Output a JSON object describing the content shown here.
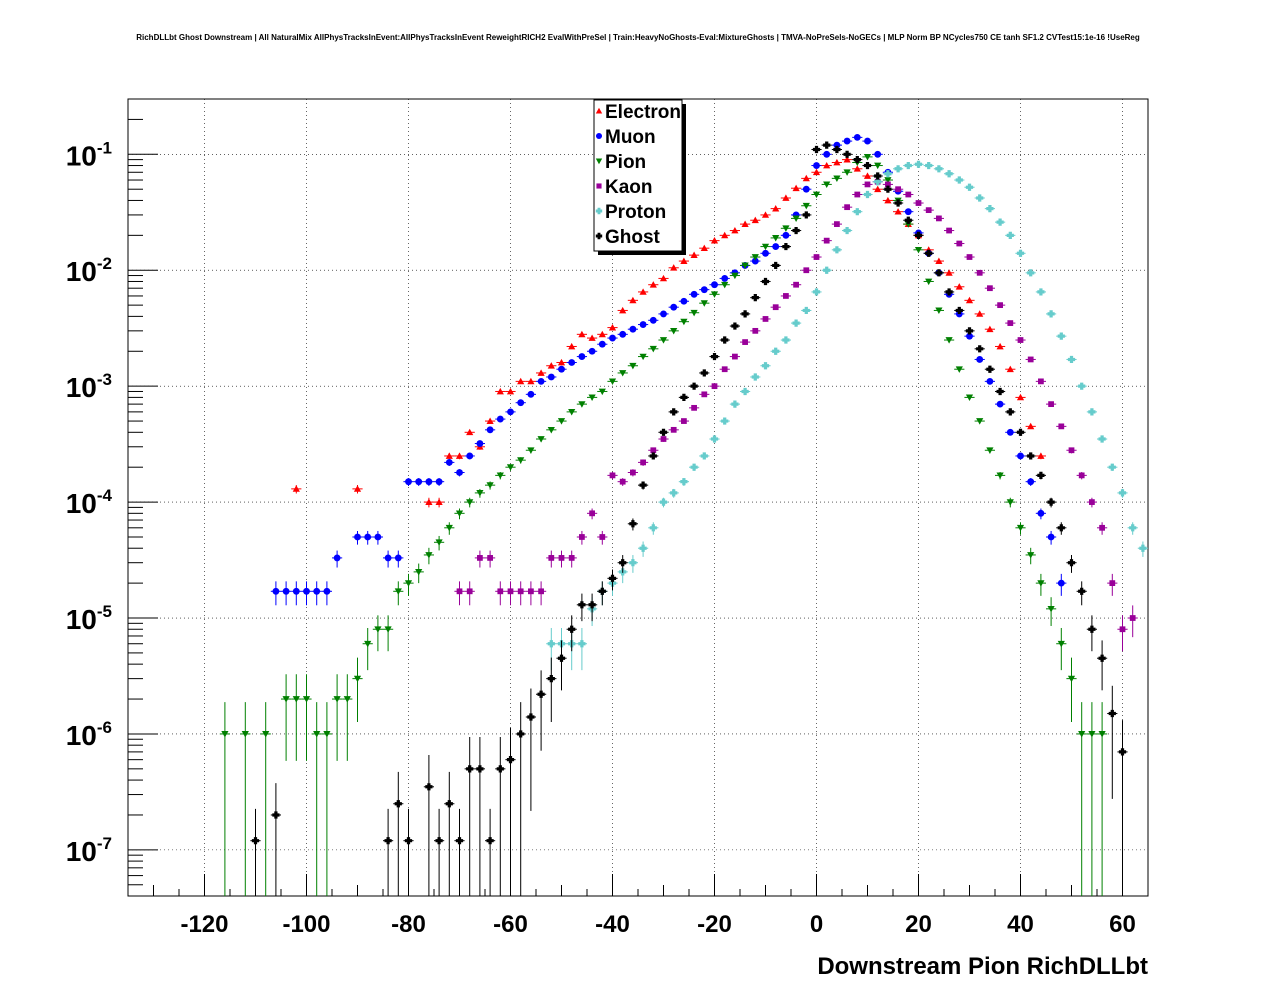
{
  "chart_data": {
    "type": "scatter",
    "title": "RichDLLbt Ghost Downstream | All NaturalMix AllPhysTracksInEvent:AllPhysTracksInEvent ReweightRICH2 EvalWithPreSel | Train:HeavyNoGhosts-Eval:MixtureGhosts | TMVA-NoPreSels-NoGECs | MLP Norm BP NCycles750 CE tanh SF1.2 CVTest15:1e-16 !UseReg",
    "xlabel": "Downstream Pion RichDLLbt",
    "ylabel": "",
    "xlim": [
      -135,
      65
    ],
    "ylim": [
      4e-08,
      0.3
    ],
    "yscale": "log",
    "grid": true,
    "legend_position": "top-center",
    "x_ticks": [
      -120,
      -100,
      -80,
      -60,
      -40,
      -20,
      0,
      20,
      40,
      60
    ],
    "y_ticks": [
      {
        "value": 1e-07,
        "base": "10",
        "exp": "-7"
      },
      {
        "value": 1e-06,
        "base": "10",
        "exp": "-6"
      },
      {
        "value": 1e-05,
        "base": "10",
        "exp": "-5"
      },
      {
        "value": 0.0001,
        "base": "10",
        "exp": "-4"
      },
      {
        "value": 0.001,
        "base": "10",
        "exp": "-3"
      },
      {
        "value": 0.01,
        "base": "10",
        "exp": "-2"
      },
      {
        "value": 0.1,
        "base": "10",
        "exp": "-1"
      }
    ],
    "series": [
      {
        "name": "Electron",
        "color": "#ff0000",
        "marker": "triangle-up",
        "x": [
          -102,
          -90,
          -76,
          -74,
          -72,
          -70,
          -68,
          -66,
          -64,
          -62,
          -60,
          -58,
          -56,
          -54,
          -52,
          -50,
          -48,
          -46,
          -44,
          -42,
          -40,
          -38,
          -36,
          -34,
          -32,
          -30,
          -28,
          -26,
          -24,
          -22,
          -20,
          -18,
          -16,
          -14,
          -12,
          -10,
          -8,
          -6,
          -4,
          -2,
          0,
          2,
          4,
          6,
          8,
          10,
          12,
          14,
          16,
          18,
          20,
          22,
          24,
          26,
          28,
          30,
          32,
          34,
          36,
          38,
          40,
          42,
          44
        ],
        "y": [
          0.00013,
          0.00013,
          0.0001,
          0.0001,
          0.00025,
          0.00025,
          0.0004,
          0.0003,
          0.0005,
          0.0009,
          0.0009,
          0.0011,
          0.0011,
          0.0013,
          0.0015,
          0.0016,
          0.0022,
          0.0028,
          0.0026,
          0.0028,
          0.0032,
          0.0045,
          0.0055,
          0.0065,
          0.0075,
          0.0085,
          0.0105,
          0.012,
          0.0135,
          0.0155,
          0.018,
          0.02,
          0.022,
          0.025,
          0.027,
          0.03,
          0.034,
          0.042,
          0.051,
          0.062,
          0.07,
          0.08,
          0.085,
          0.09,
          0.075,
          0.065,
          0.05,
          0.04,
          0.032,
          0.025,
          0.02,
          0.015,
          0.012,
          0.0095,
          0.0072,
          0.0055,
          0.0042,
          0.0031,
          0.0022,
          0.0014,
          0.0008,
          0.00045,
          0.00025
        ]
      },
      {
        "name": "Muon",
        "color": "#0000ff",
        "marker": "circle",
        "x": [
          -106,
          -104,
          -102,
          -100,
          -98,
          -96,
          -94,
          -90,
          -88,
          -86,
          -84,
          -82,
          -80,
          -78,
          -76,
          -74,
          -72,
          -70,
          -68,
          -66,
          -64,
          -62,
          -60,
          -58,
          -56,
          -54,
          -52,
          -50,
          -48,
          -46,
          -44,
          -42,
          -40,
          -38,
          -36,
          -34,
          -32,
          -30,
          -28,
          -26,
          -24,
          -22,
          -20,
          -18,
          -16,
          -14,
          -12,
          -10,
          -8,
          -6,
          -4,
          -2,
          0,
          2,
          4,
          6,
          8,
          10,
          12,
          14,
          16,
          18,
          20,
          22,
          24,
          26,
          28,
          30,
          32,
          34,
          36,
          38,
          40,
          42,
          44,
          46,
          48
        ],
        "y": [
          1.7e-05,
          1.7e-05,
          1.7e-05,
          1.7e-05,
          1.7e-05,
          1.7e-05,
          3.3e-05,
          5e-05,
          5e-05,
          5e-05,
          3.3e-05,
          3.3e-05,
          0.00015,
          0.00015,
          0.00015,
          0.00015,
          0.00022,
          0.00018,
          0.00025,
          0.00032,
          0.00042,
          0.00052,
          0.0006,
          0.00072,
          0.00085,
          0.0011,
          0.0012,
          0.0014,
          0.0016,
          0.0018,
          0.002,
          0.0023,
          0.0026,
          0.0028,
          0.0031,
          0.0034,
          0.0037,
          0.0042,
          0.0048,
          0.0054,
          0.0062,
          0.0068,
          0.0075,
          0.0085,
          0.0095,
          0.011,
          0.012,
          0.014,
          0.016,
          0.02,
          0.03,
          0.05,
          0.08,
          0.1,
          0.12,
          0.13,
          0.14,
          0.13,
          0.1,
          0.07,
          0.048,
          0.032,
          0.021,
          0.014,
          0.0095,
          0.0062,
          0.0042,
          0.0027,
          0.0017,
          0.0011,
          0.0007,
          0.0004,
          0.00025,
          0.00015,
          8e-05,
          5e-05,
          2e-05
        ]
      },
      {
        "name": "Pion",
        "color": "#008000",
        "marker": "triangle-down",
        "x": [
          -116,
          -112,
          -108,
          -104,
          -102,
          -100,
          -98,
          -96,
          -94,
          -92,
          -90,
          -88,
          -86,
          -84,
          -82,
          -80,
          -78,
          -76,
          -74,
          -72,
          -70,
          -68,
          -66,
          -64,
          -62,
          -60,
          -58,
          -56,
          -54,
          -52,
          -50,
          -48,
          -46,
          -44,
          -42,
          -40,
          -38,
          -36,
          -34,
          -32,
          -30,
          -28,
          -26,
          -24,
          -22,
          -20,
          -18,
          -16,
          -14,
          -12,
          -10,
          -8,
          -6,
          -4,
          -2,
          0,
          2,
          4,
          6,
          8,
          10,
          12,
          14,
          16,
          18,
          20,
          22,
          24,
          26,
          28,
          30,
          32,
          34,
          36,
          38,
          40,
          42,
          44,
          46,
          48,
          50,
          52,
          54,
          56
        ],
        "y": [
          1e-06,
          1e-06,
          1e-06,
          2e-06,
          2e-06,
          2e-06,
          1e-06,
          1e-06,
          2e-06,
          2e-06,
          3e-06,
          6e-06,
          8e-06,
          8e-06,
          1.7e-05,
          2e-05,
          2.5e-05,
          3.5e-05,
          4.5e-05,
          6e-05,
          8e-05,
          0.0001,
          0.00012,
          0.00014,
          0.00017,
          0.0002,
          0.00023,
          0.00028,
          0.00035,
          0.00042,
          0.0005,
          0.0006,
          0.0007,
          0.0008,
          0.0009,
          0.0011,
          0.0013,
          0.0015,
          0.0018,
          0.0021,
          0.0025,
          0.003,
          0.0036,
          0.0043,
          0.0052,
          0.0062,
          0.0075,
          0.009,
          0.011,
          0.013,
          0.016,
          0.019,
          0.023,
          0.028,
          0.036,
          0.045,
          0.055,
          0.062,
          0.07,
          0.085,
          0.095,
          0.08,
          0.06,
          0.04,
          0.025,
          0.015,
          0.008,
          0.0045,
          0.0025,
          0.0014,
          0.0008,
          0.0005,
          0.00028,
          0.00017,
          0.0001,
          6e-05,
          3.5e-05,
          2e-05,
          1.2e-05,
          6e-06,
          3e-06,
          1e-06,
          1e-06,
          1e-06
        ]
      },
      {
        "name": "Kaon",
        "color": "#990099",
        "marker": "square",
        "x": [
          -70,
          -68,
          -66,
          -64,
          -62,
          -60,
          -58,
          -56,
          -54,
          -52,
          -50,
          -48,
          -46,
          -44,
          -42,
          -40,
          -38,
          -36,
          -34,
          -32,
          -30,
          -28,
          -26,
          -24,
          -22,
          -20,
          -18,
          -16,
          -14,
          -12,
          -10,
          -8,
          -6,
          -4,
          -2,
          0,
          2,
          4,
          6,
          8,
          10,
          12,
          14,
          16,
          18,
          20,
          22,
          24,
          26,
          28,
          30,
          32,
          34,
          36,
          38,
          40,
          42,
          44,
          46,
          48,
          50,
          52,
          54,
          56,
          58,
          60,
          62
        ],
        "y": [
          1.7e-05,
          1.7e-05,
          3.3e-05,
          3.3e-05,
          1.7e-05,
          1.7e-05,
          1.7e-05,
          1.7e-05,
          1.7e-05,
          3.3e-05,
          3.3e-05,
          3.3e-05,
          5e-05,
          8e-05,
          5e-05,
          0.00017,
          0.00015,
          0.00018,
          0.00022,
          0.00028,
          0.00035,
          0.00042,
          0.0005,
          0.00065,
          0.00085,
          0.001,
          0.0014,
          0.0018,
          0.0024,
          0.003,
          0.0038,
          0.0048,
          0.006,
          0.0075,
          0.01,
          0.013,
          0.018,
          0.025,
          0.035,
          0.045,
          0.055,
          0.058,
          0.055,
          0.05,
          0.045,
          0.038,
          0.033,
          0.028,
          0.022,
          0.017,
          0.013,
          0.0095,
          0.007,
          0.005,
          0.0035,
          0.0025,
          0.0017,
          0.0011,
          0.0007,
          0.00045,
          0.00028,
          0.00017,
          0.0001,
          6e-05,
          2e-05,
          8e-06,
          1e-05
        ]
      },
      {
        "name": "Proton",
        "color": "#66cccc",
        "marker": "cross",
        "x": [
          -52,
          -50,
          -48,
          -46,
          -44,
          -42,
          -40,
          -38,
          -36,
          -34,
          -32,
          -30,
          -28,
          -26,
          -24,
          -22,
          -20,
          -18,
          -16,
          -14,
          -12,
          -10,
          -8,
          -6,
          -4,
          -2,
          0,
          2,
          4,
          6,
          8,
          10,
          12,
          14,
          16,
          18,
          20,
          22,
          24,
          26,
          28,
          30,
          32,
          34,
          36,
          38,
          40,
          42,
          44,
          46,
          48,
          50,
          52,
          54,
          56,
          58,
          60,
          62,
          64
        ],
        "y": [
          6e-06,
          6e-06,
          6e-06,
          6e-06,
          1.2e-05,
          1.7e-05,
          2e-05,
          2.5e-05,
          3e-05,
          4e-05,
          6e-05,
          0.0001,
          0.00012,
          0.00015,
          0.0002,
          0.00025,
          0.00035,
          0.0005,
          0.0007,
          0.0009,
          0.0012,
          0.0015,
          0.002,
          0.0025,
          0.0035,
          0.0045,
          0.0065,
          0.01,
          0.015,
          0.022,
          0.032,
          0.045,
          0.058,
          0.068,
          0.075,
          0.08,
          0.082,
          0.08,
          0.075,
          0.068,
          0.06,
          0.052,
          0.042,
          0.034,
          0.026,
          0.02,
          0.014,
          0.0095,
          0.0065,
          0.0042,
          0.0027,
          0.0017,
          0.001,
          0.0006,
          0.00035,
          0.0002,
          0.00012,
          6e-05,
          4e-05
        ]
      },
      {
        "name": "Ghost",
        "color": "#000000",
        "marker": "cross",
        "x": [
          -110,
          -106,
          -84,
          -82,
          -80,
          -76,
          -74,
          -72,
          -70,
          -68,
          -66,
          -64,
          -62,
          -60,
          -58,
          -56,
          -54,
          -52,
          -50,
          -48,
          -46,
          -44,
          -42,
          -40,
          -38,
          -36,
          -34,
          -32,
          -30,
          -28,
          -26,
          -24,
          -22,
          -20,
          -18,
          -16,
          -14,
          -12,
          -10,
          -8,
          -6,
          -4,
          -2,
          0,
          2,
          4,
          6,
          8,
          10,
          12,
          14,
          16,
          18,
          20,
          22,
          24,
          26,
          28,
          30,
          32,
          34,
          36,
          38,
          40,
          42,
          44,
          46,
          48,
          50,
          52,
          54,
          56,
          58,
          60
        ],
        "y": [
          1.2e-07,
          2e-07,
          1.2e-07,
          2.5e-07,
          1.2e-07,
          3.5e-07,
          1.2e-07,
          2.5e-07,
          1.2e-07,
          5e-07,
          5e-07,
          1.2e-07,
          5e-07,
          6e-07,
          1e-06,
          1.4e-06,
          2.2e-06,
          3e-06,
          4.5e-06,
          8e-06,
          1.3e-05,
          1.3e-05,
          1.7e-05,
          2.2e-05,
          3e-05,
          6.5e-05,
          0.00014,
          0.00025,
          0.0004,
          0.0006,
          0.0008,
          0.001,
          0.0013,
          0.0018,
          0.0025,
          0.0033,
          0.0042,
          0.0058,
          0.008,
          0.011,
          0.016,
          0.022,
          0.03,
          0.11,
          0.12,
          0.11,
          0.1,
          0.09,
          0.08,
          0.065,
          0.05,
          0.038,
          0.027,
          0.02,
          0.014,
          0.0095,
          0.0065,
          0.0045,
          0.003,
          0.0021,
          0.0014,
          0.0009,
          0.0006,
          0.0004,
          0.00025,
          0.00017,
          0.0001,
          6e-05,
          3e-05,
          1.7e-05,
          8e-06,
          4.5e-06,
          1.5e-06,
          7e-07
        ]
      }
    ]
  }
}
